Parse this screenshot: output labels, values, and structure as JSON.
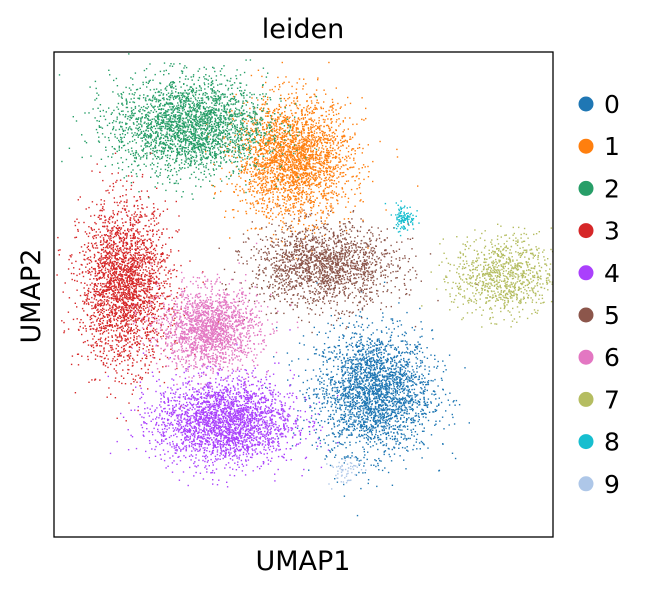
{
  "chart_data": {
    "type": "scatter",
    "title": "leiden",
    "xlabel": "UMAP1",
    "ylabel": "UMAP2",
    "ticks": false,
    "grid": false,
    "legend_position": "right",
    "legend": [
      {
        "label": "0",
        "color": "#1f77b4"
      },
      {
        "label": "1",
        "color": "#ff7f0e"
      },
      {
        "label": "2",
        "color": "#279e68"
      },
      {
        "label": "3",
        "color": "#d62728"
      },
      {
        "label": "4",
        "color": "#aa40fc"
      },
      {
        "label": "5",
        "color": "#8c564b"
      },
      {
        "label": "6",
        "color": "#e377c2"
      },
      {
        "label": "7",
        "color": "#b5bd61"
      },
      {
        "label": "8",
        "color": "#17becf"
      },
      {
        "label": "9",
        "color": "#aec7e8"
      }
    ],
    "clusters": [
      {
        "label": "0",
        "centroid": [
          6.4,
          3.0
        ],
        "spread": [
          1.05,
          1.15
        ],
        "density": "high"
      },
      {
        "label": "1",
        "centroid": [
          4.8,
          7.8
        ],
        "spread": [
          1.05,
          1.1
        ],
        "density": "high"
      },
      {
        "label": "2",
        "centroid": [
          2.7,
          8.5
        ],
        "spread": [
          1.4,
          0.9
        ],
        "density": "high"
      },
      {
        "label": "3",
        "centroid": [
          1.4,
          5.2
        ],
        "spread": [
          0.8,
          1.5
        ],
        "density": "high"
      },
      {
        "label": "4",
        "centroid": [
          3.4,
          2.4
        ],
        "spread": [
          1.25,
          0.8
        ],
        "density": "high"
      },
      {
        "label": "5",
        "centroid": [
          5.4,
          5.6
        ],
        "spread": [
          1.3,
          0.75
        ],
        "density": "medium"
      },
      {
        "label": "6",
        "centroid": [
          3.1,
          4.3
        ],
        "spread": [
          0.9,
          0.75
        ],
        "density": "medium"
      },
      {
        "label": "7",
        "centroid": [
          9.0,
          5.4
        ],
        "spread": [
          0.9,
          0.75
        ],
        "density": "low"
      },
      {
        "label": "8",
        "centroid": [
          7.0,
          6.6
        ],
        "spread": [
          0.2,
          0.25
        ],
        "density": "very low"
      },
      {
        "label": "9",
        "centroid": [
          5.8,
          1.4
        ],
        "spread": [
          0.3,
          0.3
        ],
        "density": "trace"
      }
    ]
  }
}
